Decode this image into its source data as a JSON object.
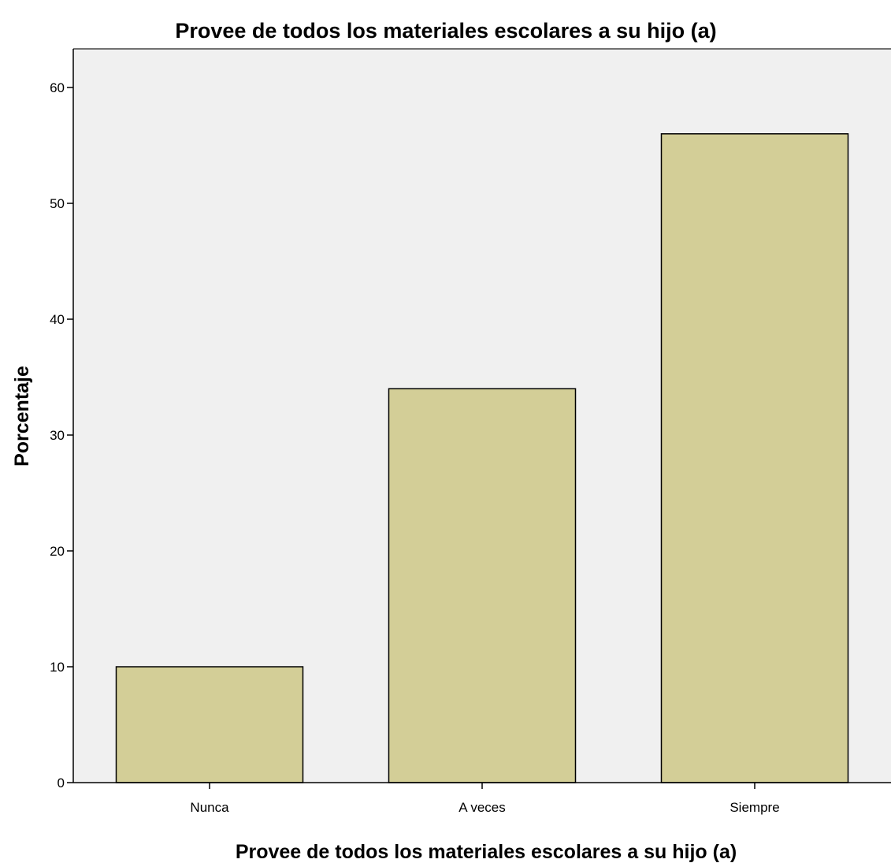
{
  "chart_data": {
    "type": "bar",
    "title": "Provee de todos los materiales escolares a su hijo (a)",
    "xlabel": "Provee de todos los materiales escolares a su hijo (a)",
    "ylabel": "Porcentaje",
    "categories": [
      "Nunca",
      "A veces",
      "Siempre"
    ],
    "values": [
      10,
      34,
      56
    ],
    "ylim": [
      0,
      63
    ],
    "yticks": [
      "0",
      "10",
      "20",
      "30",
      "40",
      "50",
      "60"
    ],
    "grid": false,
    "colors": {
      "bar_fill": "#d3ce97",
      "bar_stroke": "#000000",
      "plot_background": "#f0f0f0"
    }
  }
}
